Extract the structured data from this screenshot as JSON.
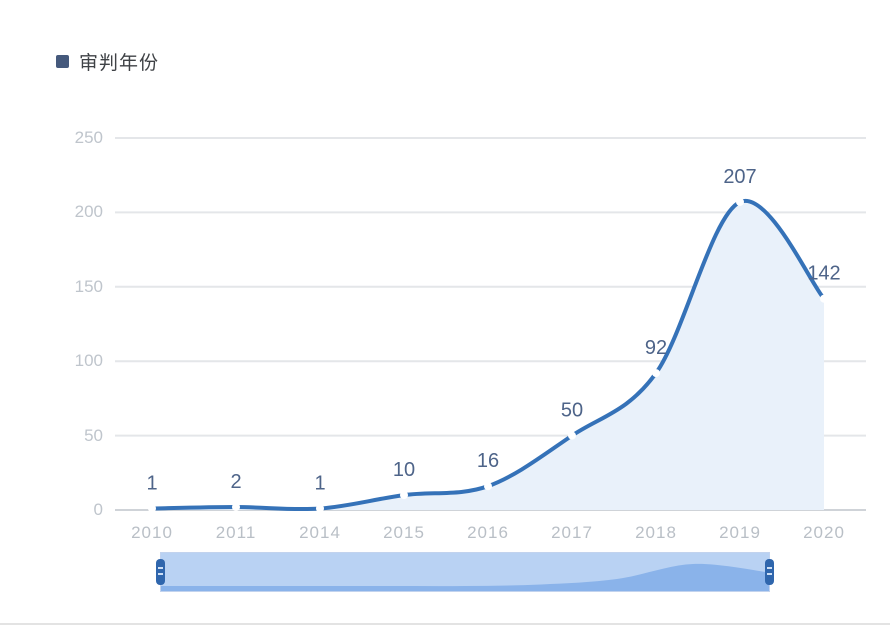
{
  "legend": {
    "label": "审判年份",
    "marker_color": "#45597c"
  },
  "chart_data": {
    "type": "line",
    "title": "审判年份",
    "series_name": "审判年份",
    "categories": [
      "2010",
      "2011",
      "2014",
      "2015",
      "2016",
      "2017",
      "2018",
      "2019",
      "2020"
    ],
    "values": [
      1,
      2,
      1,
      10,
      16,
      50,
      92,
      207,
      142
    ],
    "xlabel": "",
    "ylabel": "",
    "ylim": [
      0,
      250
    ],
    "yticks": [
      0,
      50,
      100,
      150,
      200,
      250
    ],
    "grid": true,
    "smooth": true,
    "area": true,
    "legend_position": "top-left",
    "colors": {
      "line": "#3572b8",
      "area_fill": "#e9f1fa",
      "point_gap": "#ffffff",
      "data_label": "#4e6489",
      "axis_label": "#bfc5cc",
      "gridline": "#e4e6e9",
      "zero_line": "#cfd3d8"
    }
  },
  "datazoom": {
    "range_start": "2010",
    "range_end": "2020",
    "track_color": "#b9d2f3",
    "shadow_color": "#8ab3ea",
    "handle_color": "#2f66ad"
  }
}
